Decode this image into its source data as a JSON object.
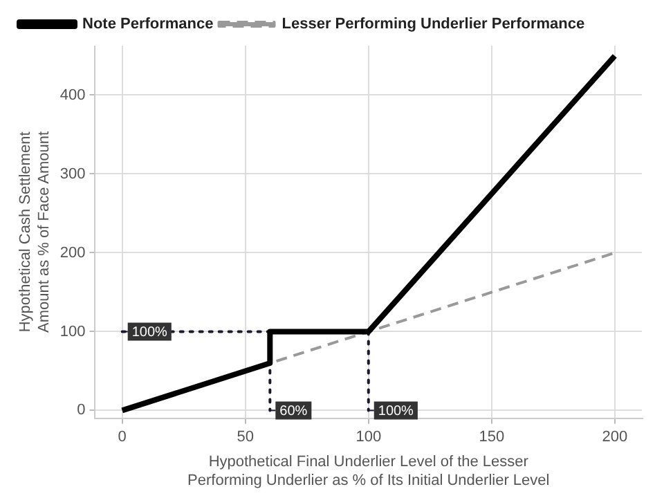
{
  "chart_data": {
    "type": "line",
    "xlabel": "Hypothetical Final Underlier Level of the Lesser Performing Underlier as % of Its Initial Underlier Level",
    "ylabel": "Hypothetical Cash Settlement Amount as % of Face Amount",
    "series": [
      {
        "name": "Note Performance",
        "color": "#000000",
        "line_style": "solid",
        "x": [
          0,
          60,
          60,
          100,
          200
        ],
        "values": [
          0,
          60,
          100,
          100,
          450
        ]
      },
      {
        "name": "Lesser Performing Underlier Performance",
        "color": "#999999",
        "line_style": "dashed",
        "x": [
          0,
          200
        ],
        "values": [
          0,
          200
        ]
      },
      {
        "color": "#1a1a2e",
        "line_style": "dotted",
        "x": [
          0,
          60
        ],
        "values": [
          100,
          100
        ]
      },
      {
        "color": "#1a1a2e",
        "line_style": "dotted",
        "x": [
          60,
          60
        ],
        "values": [
          100,
          0
        ]
      },
      {
        "color": "#1a1a2e",
        "line_style": "dotted",
        "x": [
          100,
          100
        ],
        "values": [
          100,
          0
        ]
      }
    ],
    "annotations": [
      {
        "text": "100%",
        "x": 0,
        "y": 100
      },
      {
        "text": "60%",
        "x": 60,
        "y": 0
      },
      {
        "text": "100%",
        "x": 100,
        "y": 0
      }
    ],
    "xlim": [
      -11,
      211
    ],
    "xticks": [
      0,
      50,
      100,
      150,
      200
    ],
    "ylim": [
      -10,
      463
    ],
    "yticks": [
      0,
      100,
      200,
      300,
      400
    ],
    "grid": true,
    "legend": "top left",
    "marker": "none"
  }
}
